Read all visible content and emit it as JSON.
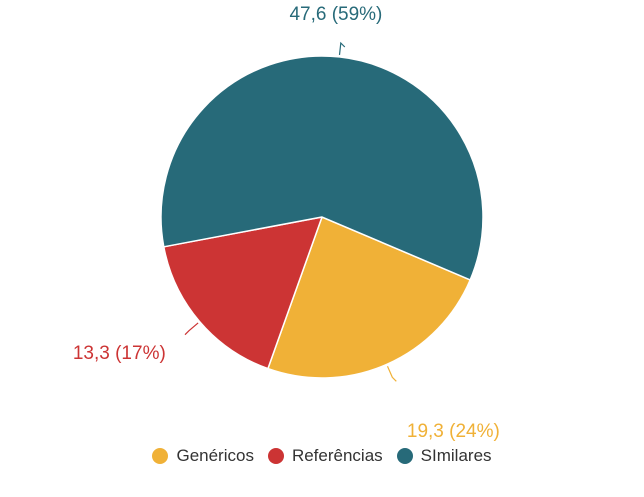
{
  "chart_data": {
    "type": "pie",
    "categories": [
      "Genéricos",
      "Referências",
      "SImilares"
    ],
    "values": [
      19.3,
      13.3,
      47.6
    ],
    "percentages": [
      24,
      17,
      59
    ],
    "labels": [
      "19,3 (24%)",
      "13,3 (17%)",
      "47,6 (59%)"
    ],
    "colors": [
      "#F0B137",
      "#CC3434",
      "#276A79"
    ],
    "legend_position": "bottom-center",
    "title": ""
  },
  "legend": {
    "items": [
      {
        "label": "Genéricos",
        "color": "#F0B137"
      },
      {
        "label": "Referências",
        "color": "#CC3434"
      },
      {
        "label": "SImilares",
        "color": "#276A79"
      }
    ]
  }
}
